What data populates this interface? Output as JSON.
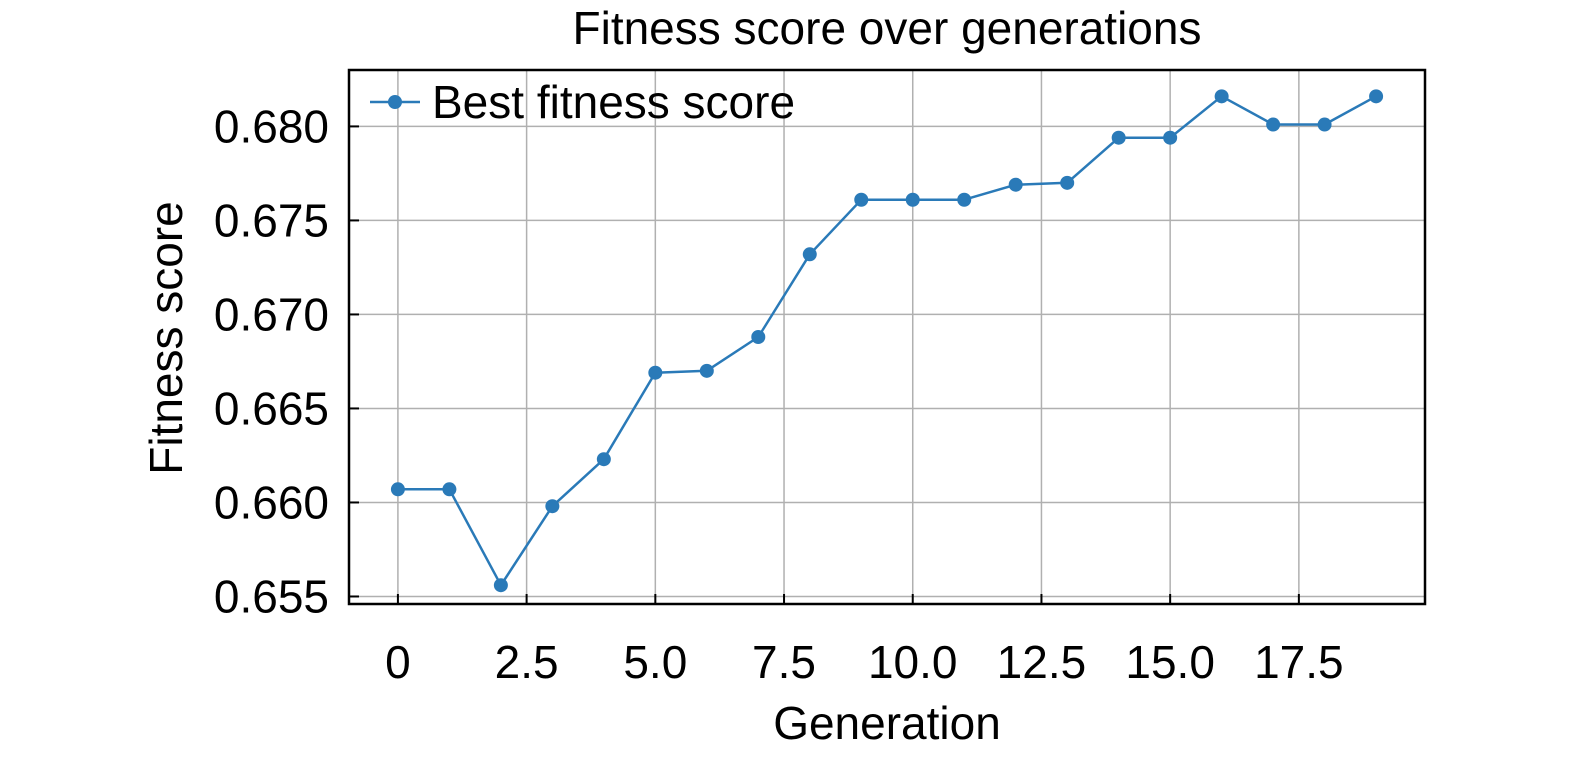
{
  "chart_data": {
    "type": "line",
    "title": "Fitness score over generations",
    "xlabel": "Generation",
    "ylabel": "Fitness score",
    "xlim": [
      -0.95,
      19.95
    ],
    "ylim": [
      0.6546,
      0.683
    ],
    "xticks": [
      0,
      2.5,
      5.0,
      7.5,
      10.0,
      12.5,
      15.0,
      17.5
    ],
    "xtick_labels": [
      "0",
      "2.5",
      "5.0",
      "7.5",
      "10.0",
      "12.5",
      "15.0",
      "17.5"
    ],
    "yticks": [
      0.655,
      0.66,
      0.665,
      0.67,
      0.675,
      0.68
    ],
    "ytick_labels": [
      "0.655",
      "0.660",
      "0.665",
      "0.670",
      "0.675",
      "0.680"
    ],
    "grid": true,
    "legend_position": "top-left",
    "series": [
      {
        "name": "Best fitness score",
        "color": "#2a7ab8",
        "marker": "circle",
        "x": [
          0,
          1,
          2,
          3,
          4,
          5,
          6,
          7,
          8,
          9,
          10,
          11,
          12,
          13,
          14,
          15,
          16,
          17,
          18,
          19
        ],
        "y": [
          0.6607,
          0.6607,
          0.6556,
          0.6598,
          0.6623,
          0.6669,
          0.667,
          0.6688,
          0.6732,
          0.6761,
          0.6761,
          0.6761,
          0.6769,
          0.677,
          0.6794,
          0.6794,
          0.6816,
          0.6801,
          0.6801,
          0.6816
        ]
      }
    ]
  }
}
